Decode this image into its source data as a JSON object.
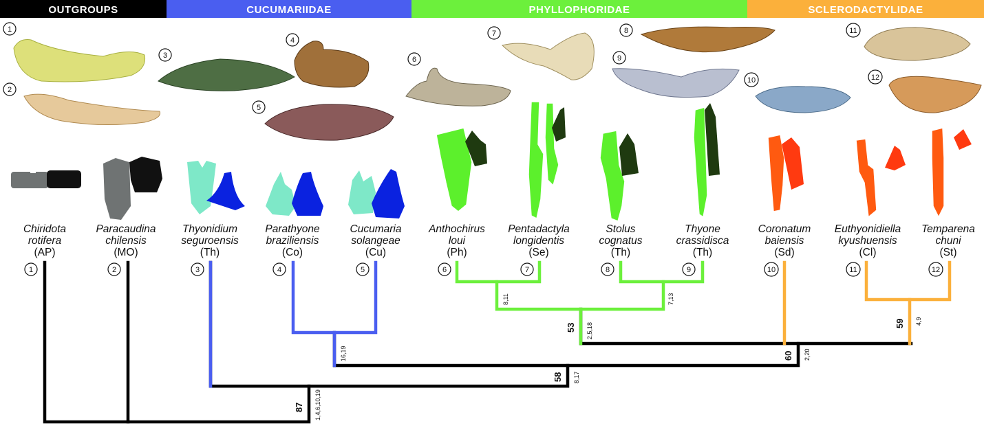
{
  "families": [
    {
      "label": "OUTGROUPS",
      "color": "#000000",
      "text": "#ffffff"
    },
    {
      "label": "CUCUMARIIDAE",
      "color": "#4a5ef0",
      "text": "#ffffff"
    },
    {
      "label": "PHYLLOPHORIDAE",
      "color": "#6cf03c",
      "text": "#ffffff"
    },
    {
      "label": "SCLERODACTYLIDAE",
      "color": "#fbb03b",
      "text": "#ffffff"
    }
  ],
  "photo_labels": [
    "1",
    "2",
    "3",
    "4",
    "5",
    "6",
    "7",
    "8",
    "9",
    "10",
    "11",
    "12"
  ],
  "taxa": [
    {
      "num": "1",
      "genus": "Chiridota",
      "species": "rotifera",
      "abbr": "(AP)"
    },
    {
      "num": "2",
      "genus": "Paracaudina",
      "species": "chilensis",
      "abbr": "(MO)"
    },
    {
      "num": "3",
      "genus": "Thyonidium",
      "species": "seguroensis",
      "abbr": "(Th)"
    },
    {
      "num": "4",
      "genus": "Parathyone",
      "species": "braziliensis",
      "abbr": "(Co)"
    },
    {
      "num": "5",
      "genus": "Cucumaria",
      "species": "solangeae",
      "abbr": "(Cu)"
    },
    {
      "num": "6",
      "genus": "Anthochirus",
      "species": "loui",
      "abbr": "(Ph)"
    },
    {
      "num": "7",
      "genus": "Pentadactyla",
      "species": "longidentis",
      "abbr": "(Se)"
    },
    {
      "num": "8",
      "genus": "Stolus",
      "species": "cognatus",
      "abbr": "(Th)"
    },
    {
      "num": "9",
      "genus": "Thyone",
      "species": "crassidisca",
      "abbr": "(Th)"
    },
    {
      "num": "10",
      "genus": "Coronatum",
      "species": "baiensis",
      "abbr": "(Sd)"
    },
    {
      "num": "11",
      "genus": "Euthyonidiella",
      "species": "kyushuensis",
      "abbr": "(Cl)"
    },
    {
      "num": "12",
      "genus": "Temparena",
      "species": "chuni",
      "abbr": "(St)"
    }
  ],
  "nodes": [
    {
      "id": "phyllo-a",
      "synapomorphies": "8,11",
      "bootstrap": ""
    },
    {
      "id": "phyllo-b",
      "synapomorphies": "7,13",
      "bootstrap": ""
    },
    {
      "id": "phyllophoridae",
      "synapomorphies": "2,5,18",
      "bootstrap": "53"
    },
    {
      "id": "sclero-a",
      "synapomorphies": "4,9",
      "bootstrap": "59"
    },
    {
      "id": "phyllo-sclero",
      "synapomorphies": "2,20",
      "bootstrap": "60"
    },
    {
      "id": "cucu-a",
      "synapomorphies": "16,19",
      "bootstrap": ""
    },
    {
      "id": "dendrochirotida-a",
      "synapomorphies": "8,17",
      "bootstrap": "58"
    },
    {
      "id": "root",
      "synapomorphies": "1,4,6,10,19",
      "bootstrap": "87"
    }
  ]
}
